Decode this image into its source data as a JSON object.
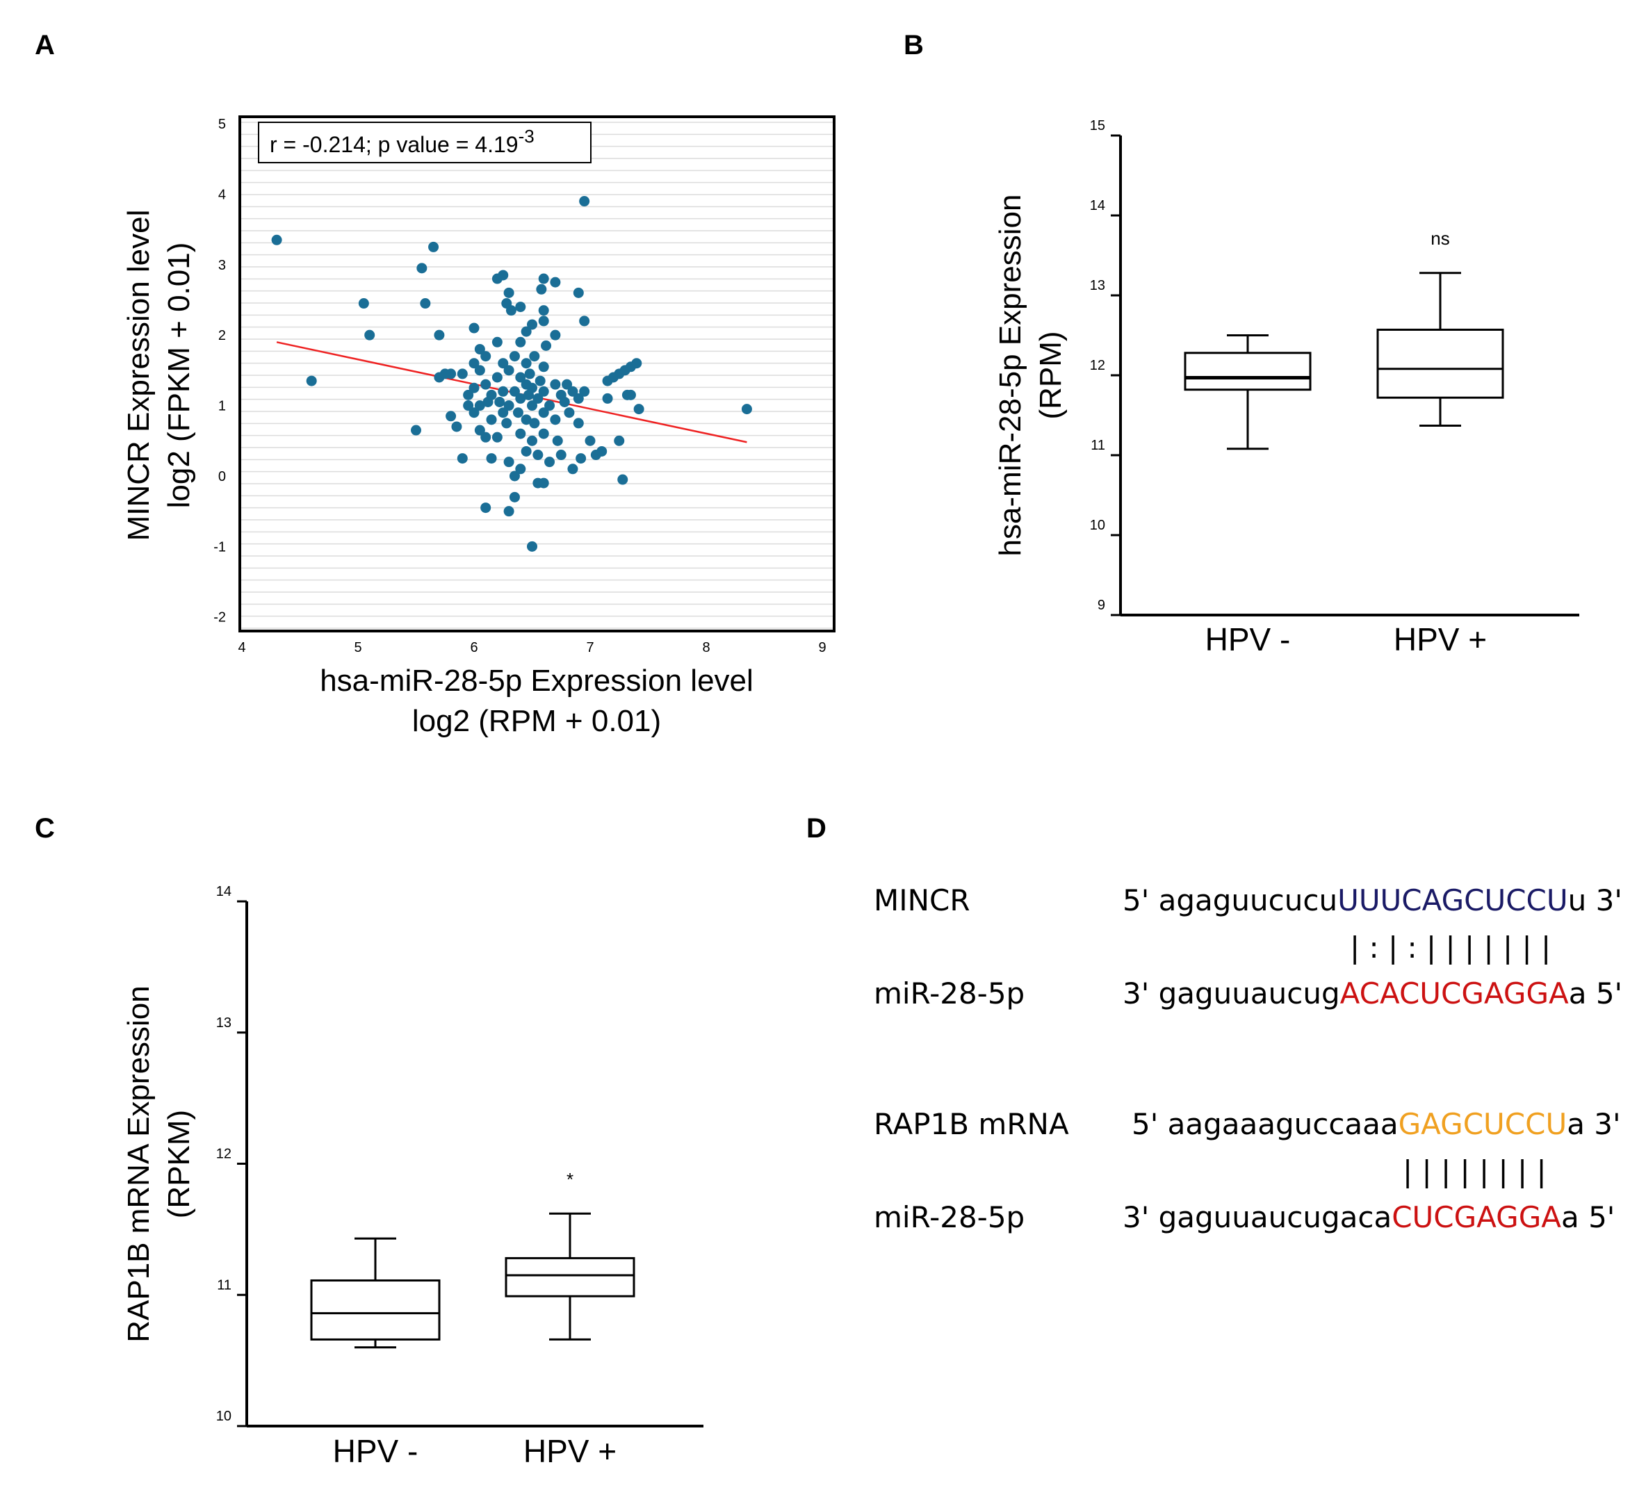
{
  "panel_labels": [
    "A",
    "B",
    "C",
    "D"
  ],
  "chart_data": [
    {
      "id": "A",
      "type": "scatter",
      "title": "",
      "xlabel_lines": [
        "hsa-miR-28-5p Expression level",
        "log2 (RPM + 0.01)"
      ],
      "ylabel_lines": [
        "MINCR Expression level",
        "log2 (FPKM + 0.01)"
      ],
      "xlim": [
        4,
        9
      ],
      "ylim": [
        -2.2,
        5
      ],
      "xticks": [
        "4",
        "5",
        "6",
        "7",
        "8",
        "9"
      ],
      "yticks": [
        "-2",
        "-1",
        "0",
        "1",
        "2",
        "3",
        "4",
        "5"
      ],
      "grid": true,
      "annotation": {
        "text": "r = -0.214; p value = 4.19",
        "superscript": "-3"
      },
      "regression": {
        "x": [
          4.3,
          8.35
        ],
        "y": [
          1.9,
          0.48
        ],
        "color": "#ee2222"
      },
      "point_color": "#1a6e96",
      "points": [
        [
          4.3,
          3.35
        ],
        [
          4.6,
          1.35
        ],
        [
          5.05,
          2.45
        ],
        [
          5.1,
          2.0
        ],
        [
          5.5,
          0.65
        ],
        [
          5.55,
          2.95
        ],
        [
          5.58,
          2.45
        ],
        [
          5.65,
          3.25
        ],
        [
          5.7,
          2.0
        ],
        [
          5.7,
          1.4
        ],
        [
          5.75,
          1.45
        ],
        [
          5.8,
          0.85
        ],
        [
          5.8,
          1.45
        ],
        [
          5.85,
          0.7
        ],
        [
          5.9,
          1.45
        ],
        [
          5.9,
          0.25
        ],
        [
          5.95,
          1.0
        ],
        [
          5.95,
          1.15
        ],
        [
          6.0,
          2.1
        ],
        [
          6.0,
          1.6
        ],
        [
          6.0,
          1.25
        ],
        [
          6.0,
          0.9
        ],
        [
          6.05,
          1.8
        ],
        [
          6.05,
          1.5
        ],
        [
          6.05,
          1.0
        ],
        [
          6.05,
          0.65
        ],
        [
          6.1,
          -0.45
        ],
        [
          6.1,
          0.55
        ],
        [
          6.1,
          1.7
        ],
        [
          6.1,
          1.3
        ],
        [
          6.12,
          1.05
        ],
        [
          6.15,
          0.8
        ],
        [
          6.15,
          0.25
        ],
        [
          6.15,
          1.15
        ],
        [
          6.2,
          2.8
        ],
        [
          6.2,
          1.9
        ],
        [
          6.2,
          1.4
        ],
        [
          6.2,
          0.55
        ],
        [
          6.22,
          1.05
        ],
        [
          6.25,
          2.85
        ],
        [
          6.25,
          1.6
        ],
        [
          6.25,
          1.2
        ],
        [
          6.25,
          0.9
        ],
        [
          6.28,
          2.45
        ],
        [
          6.28,
          0.75
        ],
        [
          6.3,
          2.6
        ],
        [
          6.3,
          1.5
        ],
        [
          6.3,
          1.0
        ],
        [
          6.3,
          0.2
        ],
        [
          6.3,
          -0.5
        ],
        [
          6.32,
          2.35
        ],
        [
          6.35,
          1.7
        ],
        [
          6.35,
          1.2
        ],
        [
          6.35,
          0.0
        ],
        [
          6.35,
          -0.3
        ],
        [
          6.38,
          0.9
        ],
        [
          6.4,
          2.4
        ],
        [
          6.4,
          1.9
        ],
        [
          6.4,
          1.4
        ],
        [
          6.4,
          1.1
        ],
        [
          6.4,
          0.6
        ],
        [
          6.4,
          0.1
        ],
        [
          6.45,
          2.05
        ],
        [
          6.45,
          1.6
        ],
        [
          6.45,
          1.3
        ],
        [
          6.45,
          0.8
        ],
        [
          6.45,
          0.35
        ],
        [
          6.47,
          1.15
        ],
        [
          6.48,
          1.45
        ],
        [
          6.5,
          2.15
        ],
        [
          6.5,
          1.25
        ],
        [
          6.5,
          1.0
        ],
        [
          6.5,
          0.5
        ],
        [
          6.5,
          -1.0
        ],
        [
          6.52,
          1.7
        ],
        [
          6.52,
          0.75
        ],
        [
          6.55,
          1.1
        ],
        [
          6.55,
          0.3
        ],
        [
          6.55,
          -0.1
        ],
        [
          6.57,
          1.35
        ],
        [
          6.58,
          2.65
        ],
        [
          6.6,
          2.8
        ],
        [
          6.6,
          2.35
        ],
        [
          6.6,
          2.2
        ],
        [
          6.6,
          1.55
        ],
        [
          6.6,
          1.2
        ],
        [
          6.6,
          0.9
        ],
        [
          6.6,
          0.6
        ],
        [
          6.6,
          -0.1
        ],
        [
          6.62,
          1.85
        ],
        [
          6.65,
          1.0
        ],
        [
          6.65,
          0.2
        ],
        [
          6.7,
          2.75
        ],
        [
          6.7,
          2.0
        ],
        [
          6.7,
          1.3
        ],
        [
          6.7,
          0.8
        ],
        [
          6.72,
          0.5
        ],
        [
          6.75,
          1.15
        ],
        [
          6.75,
          0.3
        ],
        [
          6.78,
          1.05
        ],
        [
          6.8,
          1.3
        ],
        [
          6.82,
          0.9
        ],
        [
          6.85,
          0.1
        ],
        [
          6.85,
          1.2
        ],
        [
          6.9,
          2.6
        ],
        [
          6.9,
          1.1
        ],
        [
          6.9,
          0.75
        ],
        [
          6.92,
          0.25
        ],
        [
          6.95,
          3.9
        ],
        [
          6.95,
          2.2
        ],
        [
          6.95,
          1.2
        ],
        [
          7.0,
          0.5
        ],
        [
          7.05,
          0.3
        ],
        [
          7.1,
          0.35
        ],
        [
          7.15,
          1.35
        ],
        [
          7.15,
          1.1
        ],
        [
          7.2,
          1.4
        ],
        [
          7.25,
          1.45
        ],
        [
          7.25,
          0.5
        ],
        [
          7.28,
          -0.05
        ],
        [
          7.3,
          1.5
        ],
        [
          7.32,
          1.15
        ],
        [
          7.35,
          1.15
        ],
        [
          7.35,
          1.55
        ],
        [
          7.4,
          1.6
        ],
        [
          7.42,
          0.95
        ],
        [
          8.35,
          0.95
        ]
      ]
    },
    {
      "id": "B",
      "type": "box",
      "ylabel_lines": [
        "hsa-miR-28-5p Expression",
        "(RPM)"
      ],
      "ylim": [
        9,
        15
      ],
      "yticks": [
        "9",
        "10",
        "11",
        "12",
        "13",
        "14",
        "15"
      ],
      "categories": [
        "HPV -",
        "HPV +"
      ],
      "boxes": [
        {
          "whisker_low": 11.08,
          "q1": 11.82,
          "median": 11.97,
          "q3": 12.28,
          "whisker_high": 12.5,
          "median_bold": true
        },
        {
          "whisker_low": 11.37,
          "q1": 11.72,
          "median": 12.08,
          "q3": 12.57,
          "whisker_high": 13.28,
          "median_bold": false
        }
      ],
      "annotations": [
        "",
        "ns"
      ]
    },
    {
      "id": "C",
      "type": "box",
      "ylabel_lines": [
        "RAP1B mRNA Expression",
        "(RPKM)"
      ],
      "ylim": [
        10,
        14
      ],
      "yticks": [
        "10",
        "11",
        "12",
        "13",
        "14"
      ],
      "categories": [
        "HPV -",
        "HPV +"
      ],
      "boxes": [
        {
          "whisker_low": 10.6,
          "q1": 10.66,
          "median": 10.86,
          "q3": 11.11,
          "whisker_high": 11.43,
          "median_bold": false
        },
        {
          "whisker_low": 10.66,
          "q1": 10.99,
          "median": 11.15,
          "q3": 11.28,
          "whisker_high": 11.62,
          "median_bold": false
        }
      ],
      "annotations": [
        "",
        "*"
      ]
    }
  ],
  "alignments": {
    "colors": {
      "navy": "#1a1a66",
      "red": "#cc1111",
      "orange": "#f0a020",
      "black": "#000000"
    },
    "groups": [
      {
        "top_name": "MINCR",
        "top_prefix": "5' agaguucucu",
        "top_highlight": "UUUCAGCUCCU",
        "top_suffix": "u 3'",
        "top_color": "navy",
        "pairing": "| : | : | | | | | | |",
        "bottom_name": "miR-28-5p",
        "bottom_prefix": "3' gaguuaucug",
        "bottom_highlight": "ACACUCGAGGA",
        "bottom_suffix": "a 5'",
        "bottom_color": "red"
      },
      {
        "top_name": "RAP1B mRNA",
        "top_prefix": "5' aagaaaguccaaa",
        "top_highlight": "GAGCUCCU",
        "top_suffix": "a 3'",
        "top_color": "orange",
        "pairing": "| | | | | | | |",
        "bottom_name": "miR-28-5p",
        "bottom_prefix": "3' gaguuaucugaca",
        "bottom_highlight": "CUCGAGGA",
        "bottom_suffix": "a 5'",
        "bottom_color": "red"
      }
    ]
  }
}
